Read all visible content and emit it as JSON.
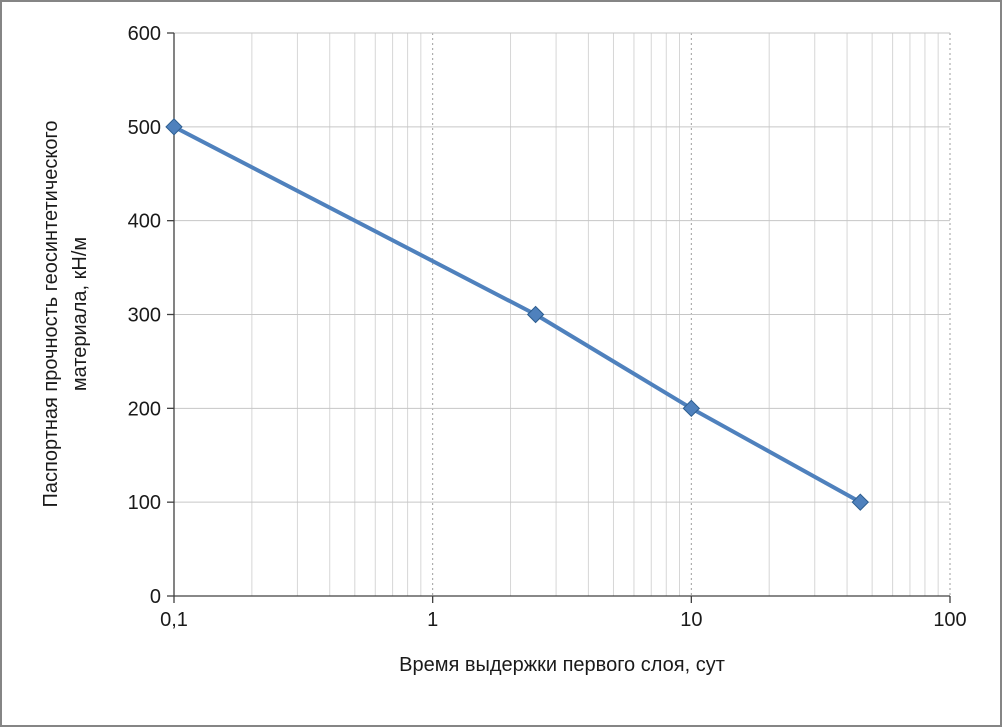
{
  "figure": {
    "border_color": "#858585",
    "background": "#ffffff"
  },
  "chart_data": {
    "type": "line",
    "title": "",
    "xlabel": "Время выдержки первого слоя, сут",
    "ylabel": "Паспортная прочность геосинтетического материала, кН/м",
    "x_scale": "log",
    "xlim": [
      0.1,
      100
    ],
    "ylim": [
      0,
      600
    ],
    "x_ticks": [
      {
        "v": 0.1,
        "label": "0,1"
      },
      {
        "v": 1,
        "label": "1"
      },
      {
        "v": 10,
        "label": "10"
      },
      {
        "v": 100,
        "label": "100"
      }
    ],
    "y_ticks": [
      {
        "v": 0,
        "label": "0"
      },
      {
        "v": 100,
        "label": "100"
      },
      {
        "v": 200,
        "label": "200"
      },
      {
        "v": 300,
        "label": "300"
      },
      {
        "v": 400,
        "label": "400"
      },
      {
        "v": 500,
        "label": "500"
      },
      {
        "v": 600,
        "label": "600"
      }
    ],
    "grid": {
      "x_minor_log": true,
      "y_major": true
    },
    "legend": "none",
    "series": [
      {
        "name": "",
        "marker": "diamond",
        "color": "#4f81bd",
        "marker_edge": "#2c5d8f",
        "points": [
          {
            "x": 0.1,
            "y": 500
          },
          {
            "x": 2.5,
            "y": 300
          },
          {
            "x": 10,
            "y": 200
          },
          {
            "x": 45,
            "y": 100
          }
        ]
      }
    ],
    "style": {
      "axis_color": "#404040",
      "grid_minor_color": "#d6d6d6",
      "grid_decade_color": "#9e9e9e",
      "grid_major_color": "#c6c6c6",
      "text_color": "#1a1a1a",
      "tick_font_px": 20,
      "label_font_px": 20
    }
  }
}
